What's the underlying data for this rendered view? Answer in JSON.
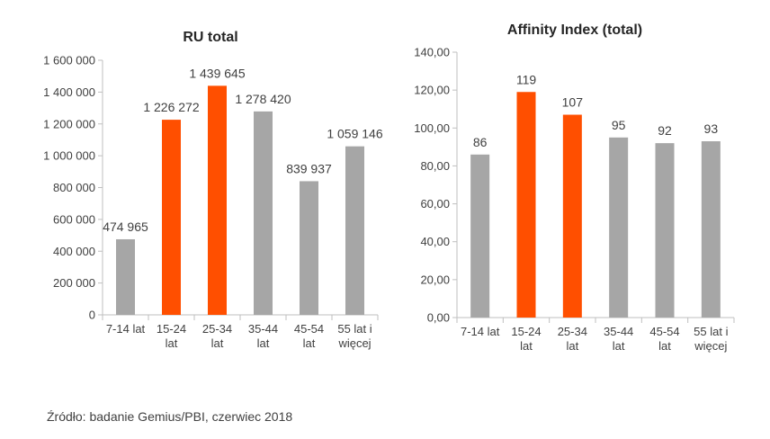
{
  "colors": {
    "gray": "#a6a6a6",
    "orange": "#ff4f00",
    "axis": "#bfbfbf",
    "text": "#404040"
  },
  "chart_data": [
    {
      "type": "bar",
      "title": "RU total",
      "categories": [
        [
          "7-14 lat"
        ],
        [
          "15-24",
          "lat"
        ],
        [
          "25-34",
          "lat"
        ],
        [
          "35-44",
          "lat"
        ],
        [
          "45-54",
          "lat"
        ],
        [
          "55 lat i",
          "więcej"
        ]
      ],
      "values": [
        474965,
        1226272,
        1439645,
        1278420,
        839937,
        1059146
      ],
      "value_labels": [
        "474 965",
        "1 226 272",
        "1 439 645",
        "1 278 420",
        "839 937",
        "1 059 146"
      ],
      "bar_colors": [
        "gray",
        "orange",
        "orange",
        "gray",
        "gray",
        "gray"
      ],
      "ylim": [
        0,
        1600000
      ],
      "yticks": [
        0,
        200000,
        400000,
        600000,
        800000,
        1000000,
        1200000,
        1400000,
        1600000
      ],
      "ytick_labels": [
        "0",
        "200 000",
        "400 000",
        "600 000",
        "800 000",
        "1 000 000",
        "1 200 000",
        "1 400 000",
        "1 600 000"
      ],
      "grid": false,
      "xlabel": "",
      "ylabel": ""
    },
    {
      "type": "bar",
      "title": "Affinity Index (total)",
      "categories": [
        [
          "7-14 lat"
        ],
        [
          "15-24",
          "lat"
        ],
        [
          "25-34",
          "lat"
        ],
        [
          "35-44",
          "lat"
        ],
        [
          "45-54",
          "lat"
        ],
        [
          "55 lat i",
          "więcej"
        ]
      ],
      "values": [
        86,
        119,
        107,
        95,
        92,
        93
      ],
      "value_labels": [
        "86",
        "119",
        "107",
        "95",
        "92",
        "93"
      ],
      "bar_colors": [
        "gray",
        "orange",
        "orange",
        "gray",
        "gray",
        "gray"
      ],
      "ylim": [
        0,
        140
      ],
      "yticks": [
        0,
        20,
        40,
        60,
        80,
        100,
        120,
        140
      ],
      "ytick_labels": [
        "0,00",
        "20,00",
        "40,00",
        "60,00",
        "80,00",
        "100,00",
        "120,00",
        "140,00"
      ],
      "grid": false,
      "xlabel": "",
      "ylabel": ""
    }
  ],
  "source": "Źródło: badanie Gemius/PBI, czerwiec 2018"
}
